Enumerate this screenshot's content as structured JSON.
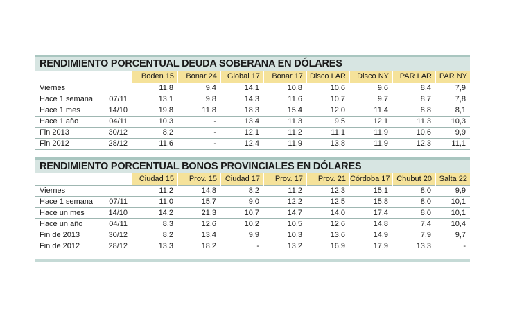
{
  "tables": [
    {
      "title": "RENDIMIENTO PORCENTUAL DEUDA SOBERANA EN DÓLARES",
      "columns": [
        "Boden 15",
        "Bonar 24",
        "Global 17",
        "Bonar 17",
        "Disco LAR",
        "Disco NY",
        "PAR LAR",
        "PAR NY"
      ],
      "rows": [
        {
          "label": "Viernes",
          "date": "",
          "values": [
            "11,8",
            "9,4",
            "14,1",
            "10,8",
            "10,6",
            "9,6",
            "8,4",
            "7,9"
          ]
        },
        {
          "label": "Hace 1 semana",
          "date": "07/11",
          "values": [
            "13,1",
            "9,8",
            "14,3",
            "11,6",
            "10,7",
            "9,7",
            "8,7",
            "7,8"
          ]
        },
        {
          "label": "Hace 1 mes",
          "date": "14/10",
          "values": [
            "19,8",
            "11,8",
            "18,3",
            "15,4",
            "12,0",
            "11,4",
            "8,8",
            "8,1"
          ]
        },
        {
          "label": "Hace 1 año",
          "date": "04/11",
          "values": [
            "10,3",
            "-",
            "13,4",
            "11,3",
            "9,5",
            "12,1",
            "11,3",
            "10,3"
          ]
        },
        {
          "label": "Fin 2013",
          "date": "30/12",
          "values": [
            "8,2",
            "-",
            "12,1",
            "11,2",
            "11,1",
            "11,9",
            "10,6",
            "9,9"
          ]
        },
        {
          "label": "Fin 2012",
          "date": "28/12",
          "values": [
            "11,6",
            "-",
            "12,4",
            "11,9",
            "13,8",
            "11,9",
            "12,3",
            "11,1"
          ]
        }
      ]
    },
    {
      "title": "RENDIMIENTO PORCENTUAL BONOS PROVINCIALES EN DÓLARES",
      "columns": [
        "Ciudad 15",
        "Prov. 15",
        "Ciudad 17",
        "Prov. 17",
        "Prov. 21",
        "Córdoba 17",
        "Chubut 20",
        "Salta 22"
      ],
      "rows": [
        {
          "label": "Viernes",
          "date": "",
          "values": [
            "11,2",
            "14,8",
            "8,2",
            "11,2",
            "12,3",
            "15,1",
            "8,0",
            "9,9"
          ]
        },
        {
          "label": "Hace 1 semana",
          "date": "07/11",
          "values": [
            "11,0",
            "15,7",
            "9,0",
            "12,2",
            "12,5",
            "15,8",
            "8,0",
            "10,1"
          ]
        },
        {
          "label": "Hace un mes",
          "date": "14/10",
          "values": [
            "14,2",
            "21,3",
            "10,7",
            "14,7",
            "14,0",
            "17,4",
            "8,0",
            "10,1"
          ]
        },
        {
          "label": "Hace un año",
          "date": "04/11",
          "values": [
            "8,3",
            "12,6",
            "10,2",
            "10,5",
            "12,6",
            "14,8",
            "7,4",
            "10,4"
          ]
        },
        {
          "label": "Fin de 2013",
          "date": "30/12",
          "values": [
            "8,2",
            "13,4",
            "9,9",
            "10,3",
            "13,6",
            "14,9",
            "7,9",
            "9,7"
          ]
        },
        {
          "label": "Fin de 2012",
          "date": "28/12",
          "values": [
            "13,3",
            "18,2",
            "-",
            "13,2",
            "16,9",
            "17,9",
            "13,3",
            "-"
          ]
        }
      ]
    }
  ]
}
